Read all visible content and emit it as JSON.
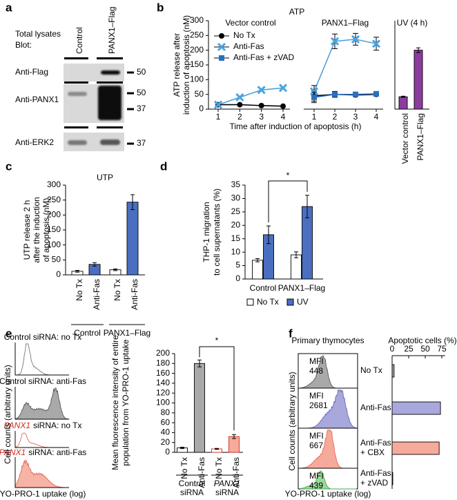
{
  "panel_labels": [
    "a",
    "b",
    "c",
    "d",
    "e",
    "f"
  ],
  "blot": {
    "header": [
      "Total lysates",
      "Blot:"
    ],
    "columns": [
      "Control",
      "PANX1–Flag"
    ],
    "rows": [
      {
        "label": "Anti-Flag",
        "markers": [
          50
        ]
      },
      {
        "label": "Anti-PANX1",
        "markers": [
          50,
          37
        ]
      },
      {
        "label": "Anti-ERK2",
        "markers": [
          37
        ]
      }
    ]
  },
  "chart_data": [
    {
      "type": "line",
      "title": "ATP",
      "ylabel": [
        "ATP release after",
        "induction of apoptosis (nM)"
      ],
      "xlabel": "Time after induction of apoptosis (h)",
      "ylim": [
        0,
        300
      ],
      "yticks": [
        0,
        50,
        100,
        150,
        200,
        250,
        300
      ],
      "x": [
        1,
        2,
        3,
        4
      ],
      "xlim": [
        1,
        4
      ],
      "xticks": [
        1,
        2,
        3,
        4
      ],
      "panels": [
        {
          "title": "Vector control",
          "series": [
            {
              "name": "No Tx",
              "color": "#000000",
              "marker": "circle",
              "values": [
                15,
                15,
                12,
                10
              ]
            },
            {
              "name": "Anti-Fas",
              "color": "#4aa3de",
              "marker": "x",
              "values": [
                15,
                40,
                65,
                72
              ]
            }
          ]
        },
        {
          "title": "PANX1–Flag",
          "series": [
            {
              "name": "No Tx",
              "color": "#000000",
              "marker": "circle",
              "values": [
                45,
                50,
                48,
                50
              ],
              "errors": [
                18,
                10,
                6,
                6
              ]
            },
            {
              "name": "Anti-Fas",
              "color": "#4aa3de",
              "marker": "x",
              "values": [
                60,
                230,
                237,
                222
              ],
              "errors": [
                20,
                25,
                20,
                22
              ]
            },
            {
              "name": "Anti-Fas + zVAD",
              "color": "#2a6fc0",
              "marker": "square",
              "values": [
                40,
                50,
                50,
                52
              ],
              "errors": [
                18,
                8,
                6,
                6
              ]
            }
          ]
        }
      ]
    },
    {
      "type": "bar",
      "title": "UV (4 h)",
      "categories": [
        "Vector control",
        "PANX1–Flag"
      ],
      "values": [
        42,
        200
      ],
      "errors": [
        2,
        8
      ],
      "color": "#8b3d9e",
      "ylim": [
        0,
        300
      ]
    },
    {
      "type": "bar",
      "title": "UTP",
      "ylabel": [
        "UTP release 2 h",
        "after the induction",
        "of apoptosis (nM)"
      ],
      "ylim": [
        0,
        300
      ],
      "yticks": [
        0,
        50,
        100,
        150,
        200,
        250,
        300
      ],
      "categories": [
        "No Tx",
        "Anti-Fas",
        "No Tx",
        "Anti-Fas"
      ],
      "category_colors": [
        "#000000",
        "#3a62b5",
        "#000000",
        "#3a62b5"
      ],
      "values": [
        12,
        35,
        17,
        243
      ],
      "errors": [
        3,
        6,
        3,
        25
      ],
      "colors": [
        "#ffffff",
        "#4a6fc0",
        "#ffffff",
        "#4a6fc0"
      ],
      "edge_colors": [
        "#000000",
        "#000000",
        "#000000",
        "#000000"
      ],
      "groups": [
        [
          "Control"
        ],
        [
          "PANX1–Flag"
        ]
      ]
    },
    {
      "type": "grouped_bar",
      "ylabel": [
        "THP-1 migration",
        "to cell supernatants (%)"
      ],
      "ylim": [
        0,
        35
      ],
      "yticks": [
        0,
        5,
        10,
        15,
        20,
        25,
        30,
        35
      ],
      "categories": [
        "Control",
        "PANX1–Flag"
      ],
      "series": [
        {
          "name": "No Tx",
          "color": "#ffffff",
          "values": [
            7,
            9
          ],
          "errors": [
            0.6,
            1.1
          ]
        },
        {
          "name": "UV",
          "color": "#4a6fc0",
          "values": [
            16.5,
            27
          ],
          "errors": [
            3.3,
            4.2
          ]
        }
      ],
      "annotation": "*"
    },
    {
      "type": "bar",
      "ylabel": [
        "Mean fluorescence intensity of entire",
        "population from YO-PRO-1 uptake"
      ],
      "ylim": [
        0,
        200
      ],
      "yticks": [
        0,
        20,
        40,
        60,
        80,
        100,
        120,
        140,
        160,
        180,
        200
      ],
      "categories": [
        "No Tx",
        "Anti-Fas",
        "No Tx",
        "Anti-Fas"
      ],
      "values": [
        9,
        180,
        7,
        32
      ],
      "errors": [
        1.5,
        7,
        1,
        4
      ],
      "colors": [
        "#ffffff",
        "#a9a9a9",
        "#ffffff",
        "#f6aa9c"
      ],
      "edge_colors": [
        "#000000",
        "#000000",
        "#d42a1e",
        "#d42a1e"
      ],
      "groups": [
        [
          "Control",
          "siRNA"
        ],
        [
          "PANX1",
          "siRNA"
        ]
      ],
      "group_colors": [
        "#000000",
        "#d42a1e"
      ],
      "annotation": "*"
    },
    {
      "type": "barh",
      "title": "Apoptotic cells (%)",
      "xlim": [
        0,
        80
      ],
      "xticks": [
        0,
        25,
        50,
        75
      ],
      "categories": [
        [
          "No Tx"
        ],
        [
          "Anti-Fas"
        ],
        [
          "Anti-Fas",
          "+ CBX"
        ],
        [
          "Anti-Fas",
          "+ zVAD"
        ]
      ],
      "values": [
        3,
        73,
        71,
        1
      ],
      "colors": [
        "#a9a9a9",
        "#a9a8dc",
        "#f6aa9c",
        "#a9a9a9"
      ]
    }
  ],
  "histograms_e": {
    "ylabel": "Cell counts (arbitrary units)",
    "xlabel": "YO-PRO-1 uptake (log)",
    "panels": [
      {
        "label": [
          "Control siRNA: no Tx"
        ],
        "label_colors": [
          "#000000"
        ],
        "fill": "none",
        "stroke": "#777777"
      },
      {
        "label": [
          "Control siRNA: anti-Fas"
        ],
        "label_colors": [
          "#000000"
        ],
        "fill": "#a9a9a9",
        "stroke": "#555555"
      },
      {
        "label": [
          "PANX1",
          "siRNA: no Tx"
        ],
        "label_colors": [
          "#d42a1e",
          "#000000"
        ],
        "fill": "none",
        "stroke": "#e56a55"
      },
      {
        "label": [
          "PANX1",
          "siRNA: anti-Fas"
        ],
        "label_colors": [
          "#d42a1e",
          "#000000"
        ],
        "fill": "#f6b3a6",
        "stroke": "#e56a55"
      }
    ]
  },
  "histograms_f": {
    "title": "Primary thymocytes",
    "ylabel": "Cell counts (arbitrary units)",
    "xlabel": "YO-PRO-1 uptake (log)",
    "mfi_label": "MFI",
    "mfi": [
      448,
      2681,
      667,
      439
    ],
    "mfi_colors": [
      "#000000",
      "#3a4fb5",
      "#d42a1e",
      "#2e9a3a"
    ],
    "fills": [
      "#a9a9a9",
      "#a9a8dc",
      "#f6aa9c",
      "#9bd69b"
    ],
    "strokes": [
      "#555555",
      "#6a68b8",
      "#e56a55",
      "#4aa84a"
    ]
  }
}
